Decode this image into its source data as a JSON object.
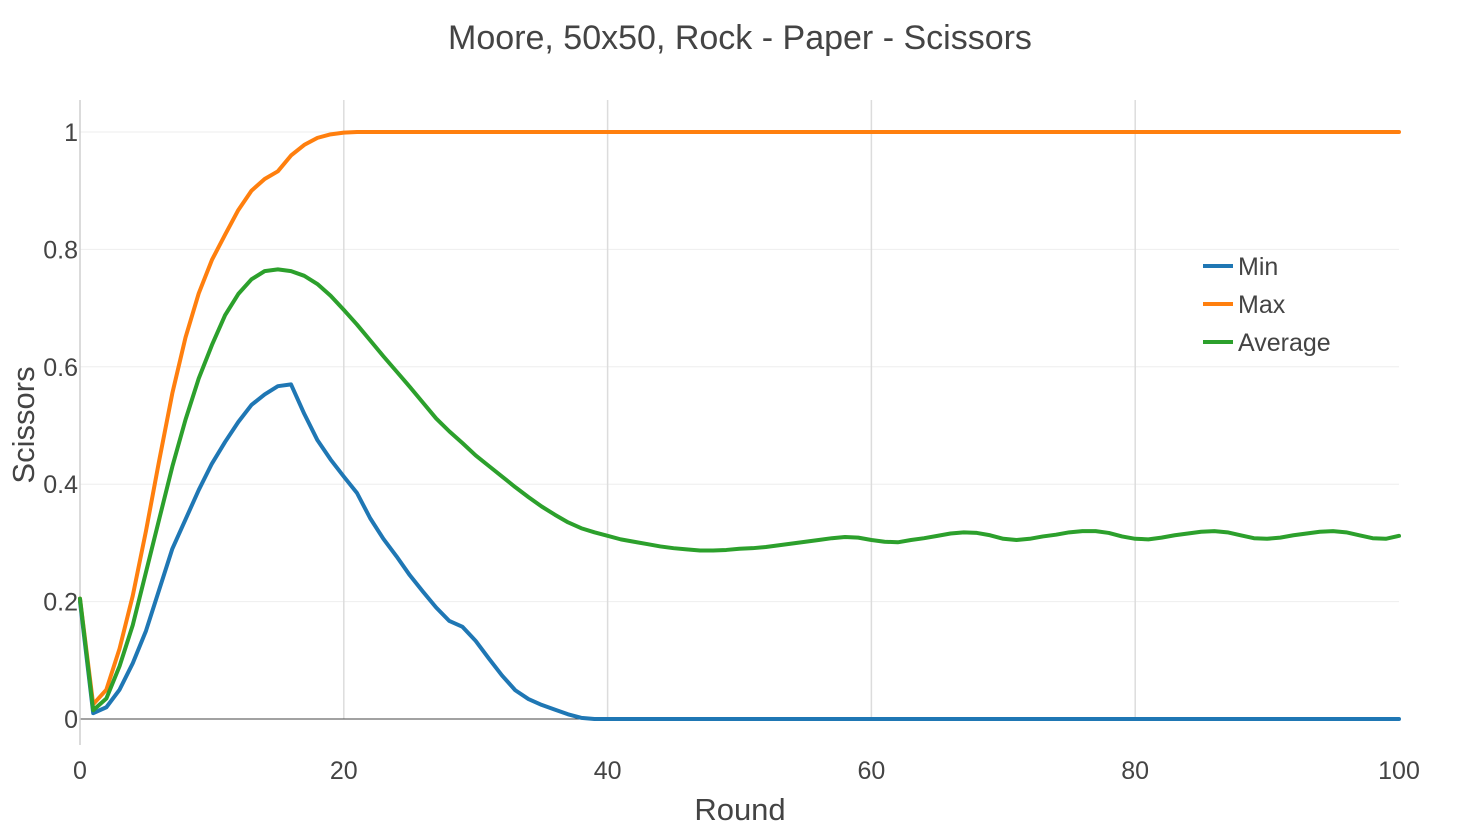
{
  "chart_data": {
    "type": "line",
    "title": "Moore, 50x50, Rock - Paper - Scissors",
    "xlabel": "Round",
    "ylabel": "Scissors",
    "xlim": [
      0,
      100
    ],
    "ylim": [
      0,
      1
    ],
    "xticks": [
      0,
      20,
      40,
      60,
      80,
      100
    ],
    "xtick_labels": [
      "0",
      "20",
      "40",
      "60",
      "80",
      "100"
    ],
    "yticks": [
      0,
      0.2,
      0.4,
      0.6,
      0.8,
      1
    ],
    "ytick_labels": [
      "0",
      "0.2",
      "0.4",
      "0.6",
      "0.8",
      "1"
    ],
    "grid": true,
    "legend_position": "right",
    "x": [
      0,
      1,
      2,
      3,
      4,
      5,
      6,
      7,
      8,
      9,
      10,
      11,
      12,
      13,
      14,
      15,
      16,
      17,
      18,
      19,
      20,
      21,
      22,
      23,
      24,
      25,
      26,
      27,
      28,
      29,
      30,
      31,
      32,
      33,
      34,
      35,
      36,
      37,
      38,
      39,
      40,
      41,
      42,
      43,
      44,
      45,
      46,
      47,
      48,
      49,
      50,
      51,
      52,
      53,
      54,
      55,
      56,
      57,
      58,
      59,
      60,
      61,
      62,
      63,
      64,
      65,
      66,
      67,
      68,
      69,
      70,
      71,
      72,
      73,
      74,
      75,
      76,
      77,
      78,
      79,
      80,
      81,
      82,
      83,
      84,
      85,
      86,
      87,
      88,
      89,
      90,
      91,
      92,
      93,
      94,
      95,
      96,
      97,
      98,
      99,
      100
    ],
    "series": [
      {
        "name": "Min",
        "color": "#1f77b4",
        "values": [
          0.2,
          0.01,
          0.02,
          0.05,
          0.095,
          0.15,
          0.22,
          0.29,
          0.34,
          0.39,
          0.435,
          0.472,
          0.506,
          0.535,
          0.553,
          0.567,
          0.57,
          0.52,
          0.475,
          0.442,
          0.413,
          0.385,
          0.342,
          0.307,
          0.277,
          0.245,
          0.217,
          0.19,
          0.167,
          0.157,
          0.133,
          0.103,
          0.074,
          0.049,
          0.034,
          0.024,
          0.016,
          0.008,
          0.002,
          0,
          0,
          0,
          0,
          0,
          0,
          0,
          0,
          0,
          0,
          0,
          0,
          0,
          0,
          0,
          0,
          0,
          0,
          0,
          0,
          0,
          0,
          0,
          0,
          0,
          0,
          0,
          0,
          0,
          0,
          0,
          0,
          0,
          0,
          0,
          0,
          0,
          0,
          0,
          0,
          0,
          0,
          0,
          0,
          0,
          0,
          0,
          0,
          0,
          0,
          0,
          0,
          0,
          0,
          0,
          0,
          0,
          0,
          0,
          0,
          0,
          0
        ]
      },
      {
        "name": "Max",
        "color": "#ff7f0e",
        "values": [
          0.205,
          0.025,
          0.05,
          0.12,
          0.21,
          0.32,
          0.44,
          0.555,
          0.65,
          0.725,
          0.782,
          0.825,
          0.867,
          0.9,
          0.92,
          0.933,
          0.96,
          0.978,
          0.99,
          0.996,
          0.999,
          1,
          1,
          1,
          1,
          1,
          1,
          1,
          1,
          1,
          1,
          1,
          1,
          1,
          1,
          1,
          1,
          1,
          1,
          1,
          1,
          1,
          1,
          1,
          1,
          1,
          1,
          1,
          1,
          1,
          1,
          1,
          1,
          1,
          1,
          1,
          1,
          1,
          1,
          1,
          1,
          1,
          1,
          1,
          1,
          1,
          1,
          1,
          1,
          1,
          1,
          1,
          1,
          1,
          1,
          1,
          1,
          1,
          1,
          1,
          1,
          1,
          1,
          1,
          1,
          1,
          1,
          1,
          1,
          1,
          1,
          1,
          1,
          1,
          1,
          1,
          1,
          1,
          1,
          1,
          1
        ]
      },
      {
        "name": "Average",
        "color": "#2ca02c",
        "values": [
          0.205,
          0.015,
          0.035,
          0.09,
          0.16,
          0.25,
          0.34,
          0.43,
          0.51,
          0.58,
          0.637,
          0.688,
          0.724,
          0.749,
          0.763,
          0.766,
          0.763,
          0.755,
          0.741,
          0.721,
          0.697,
          0.672,
          0.645,
          0.618,
          0.592,
          0.566,
          0.539,
          0.512,
          0.49,
          0.47,
          0.449,
          0.431,
          0.413,
          0.395,
          0.378,
          0.362,
          0.348,
          0.335,
          0.325,
          0.318,
          0.312,
          0.306,
          0.302,
          0.298,
          0.294,
          0.291,
          0.289,
          0.287,
          0.287,
          0.288,
          0.29,
          0.291,
          0.293,
          0.296,
          0.299,
          0.302,
          0.305,
          0.308,
          0.31,
          0.309,
          0.305,
          0.302,
          0.301,
          0.305,
          0.308,
          0.312,
          0.316,
          0.318,
          0.317,
          0.313,
          0.307,
          0.305,
          0.307,
          0.311,
          0.314,
          0.318,
          0.32,
          0.32,
          0.317,
          0.311,
          0.307,
          0.306,
          0.309,
          0.313,
          0.316,
          0.319,
          0.32,
          0.318,
          0.313,
          0.308,
          0.307,
          0.309,
          0.313,
          0.316,
          0.319,
          0.32,
          0.318,
          0.313,
          0.308,
          0.307,
          0.312
        ]
      }
    ]
  }
}
